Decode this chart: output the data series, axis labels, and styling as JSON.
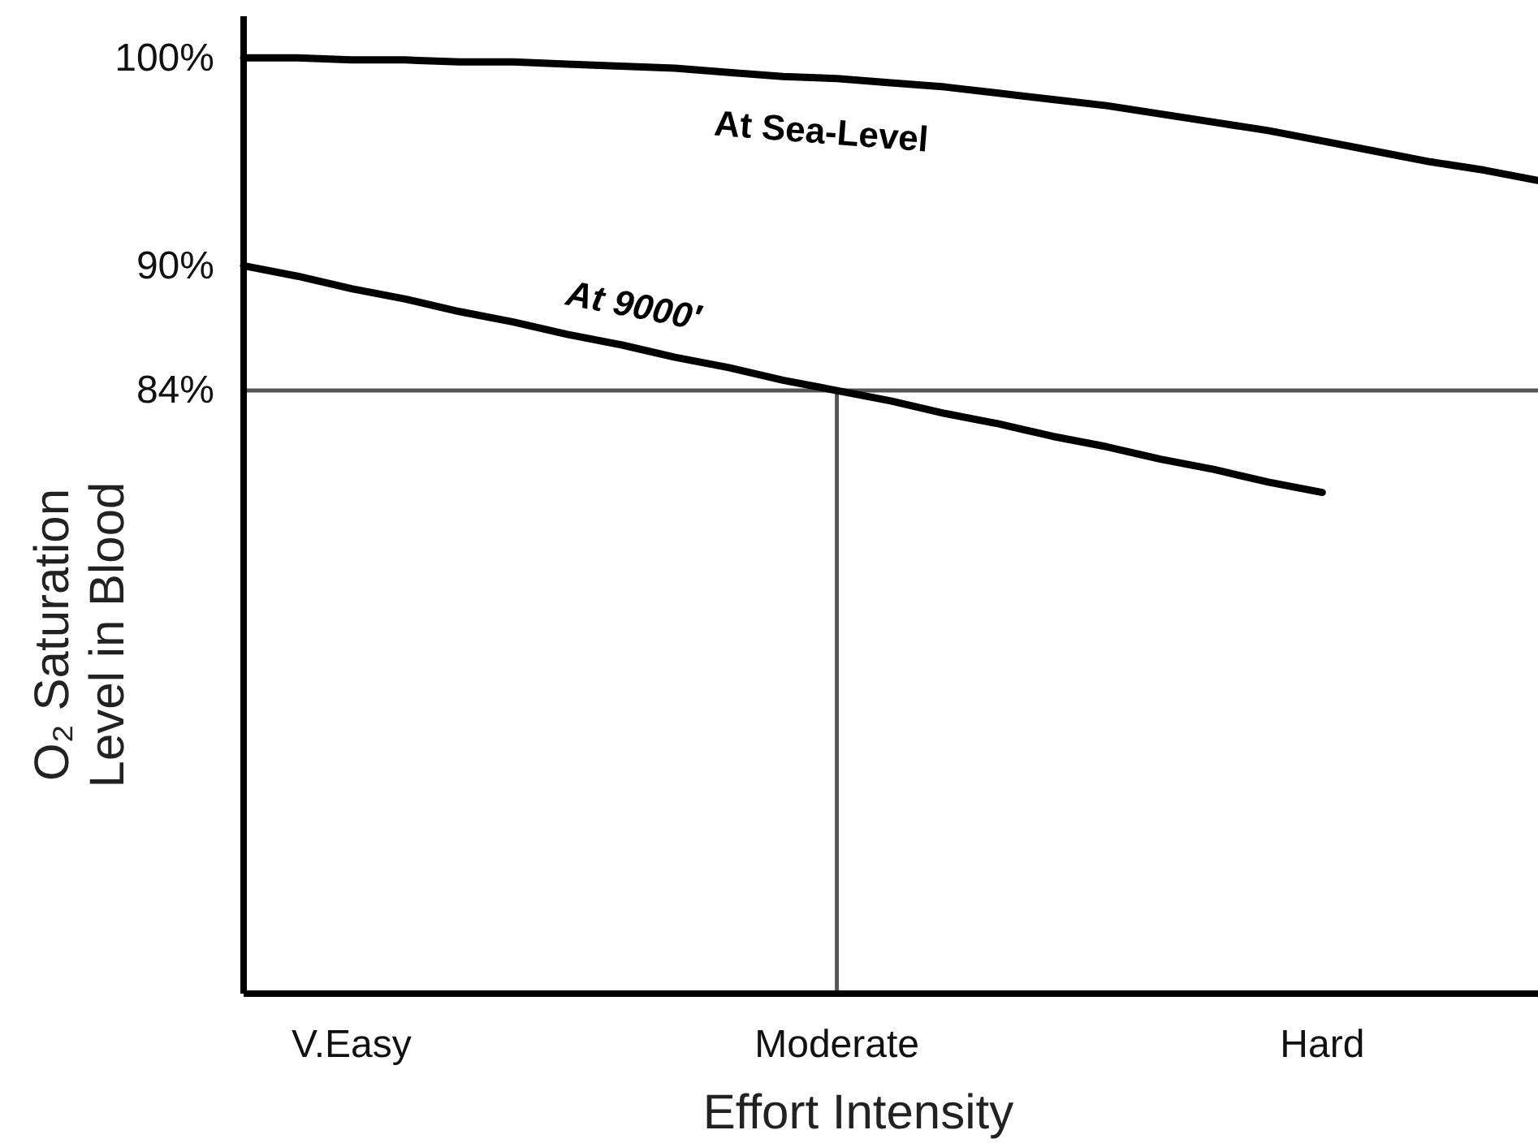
{
  "chart_data": {
    "type": "line",
    "xlabel": "Effort Intensity",
    "ylabel": "O₂ Saturation\nLevel in Blood",
    "categories": [
      null,
      null,
      "V.Easy",
      null,
      null,
      null,
      null,
      null,
      null,
      null,
      null,
      "Moderate",
      null,
      null,
      null,
      null,
      null,
      null,
      null,
      null,
      "Hard",
      null,
      null,
      null,
      null
    ],
    "ylim": [
      55,
      102
    ],
    "yticks": [
      {
        "value": 100,
        "label": "100%"
      },
      {
        "value": 90,
        "label": "90%"
      },
      {
        "value": 84,
        "label": "84%"
      }
    ],
    "series": [
      {
        "name": "At Sea-Level",
        "color": "#000000",
        "values": [
          100,
          100,
          99.9,
          99.9,
          99.8,
          99.8,
          99.7,
          99.6,
          99.5,
          99.3,
          99.1,
          99.0,
          98.8,
          98.6,
          98.3,
          98.0,
          97.7,
          97.3,
          96.9,
          96.5,
          96.0,
          95.5,
          95.0,
          94.6,
          94.1
        ]
      },
      {
        "name": "At 9000′",
        "color": "#000000",
        "values": [
          90,
          89.5,
          88.9,
          88.4,
          87.8,
          87.3,
          86.7,
          86.2,
          85.6,
          85.1,
          84.5,
          84,
          83.5,
          82.9,
          82.4,
          81.8,
          81.3,
          80.7,
          80.2,
          79.6,
          79.1,
          null,
          null,
          null,
          null
        ]
      }
    ],
    "ref_lines": [
      {
        "axis": "y",
        "value": 84,
        "color": "#555555"
      },
      {
        "axis": "x",
        "value": "Moderate",
        "color": "#555555"
      }
    ],
    "line_style": "solid",
    "marker": "none",
    "grid": false,
    "legend": false
  }
}
